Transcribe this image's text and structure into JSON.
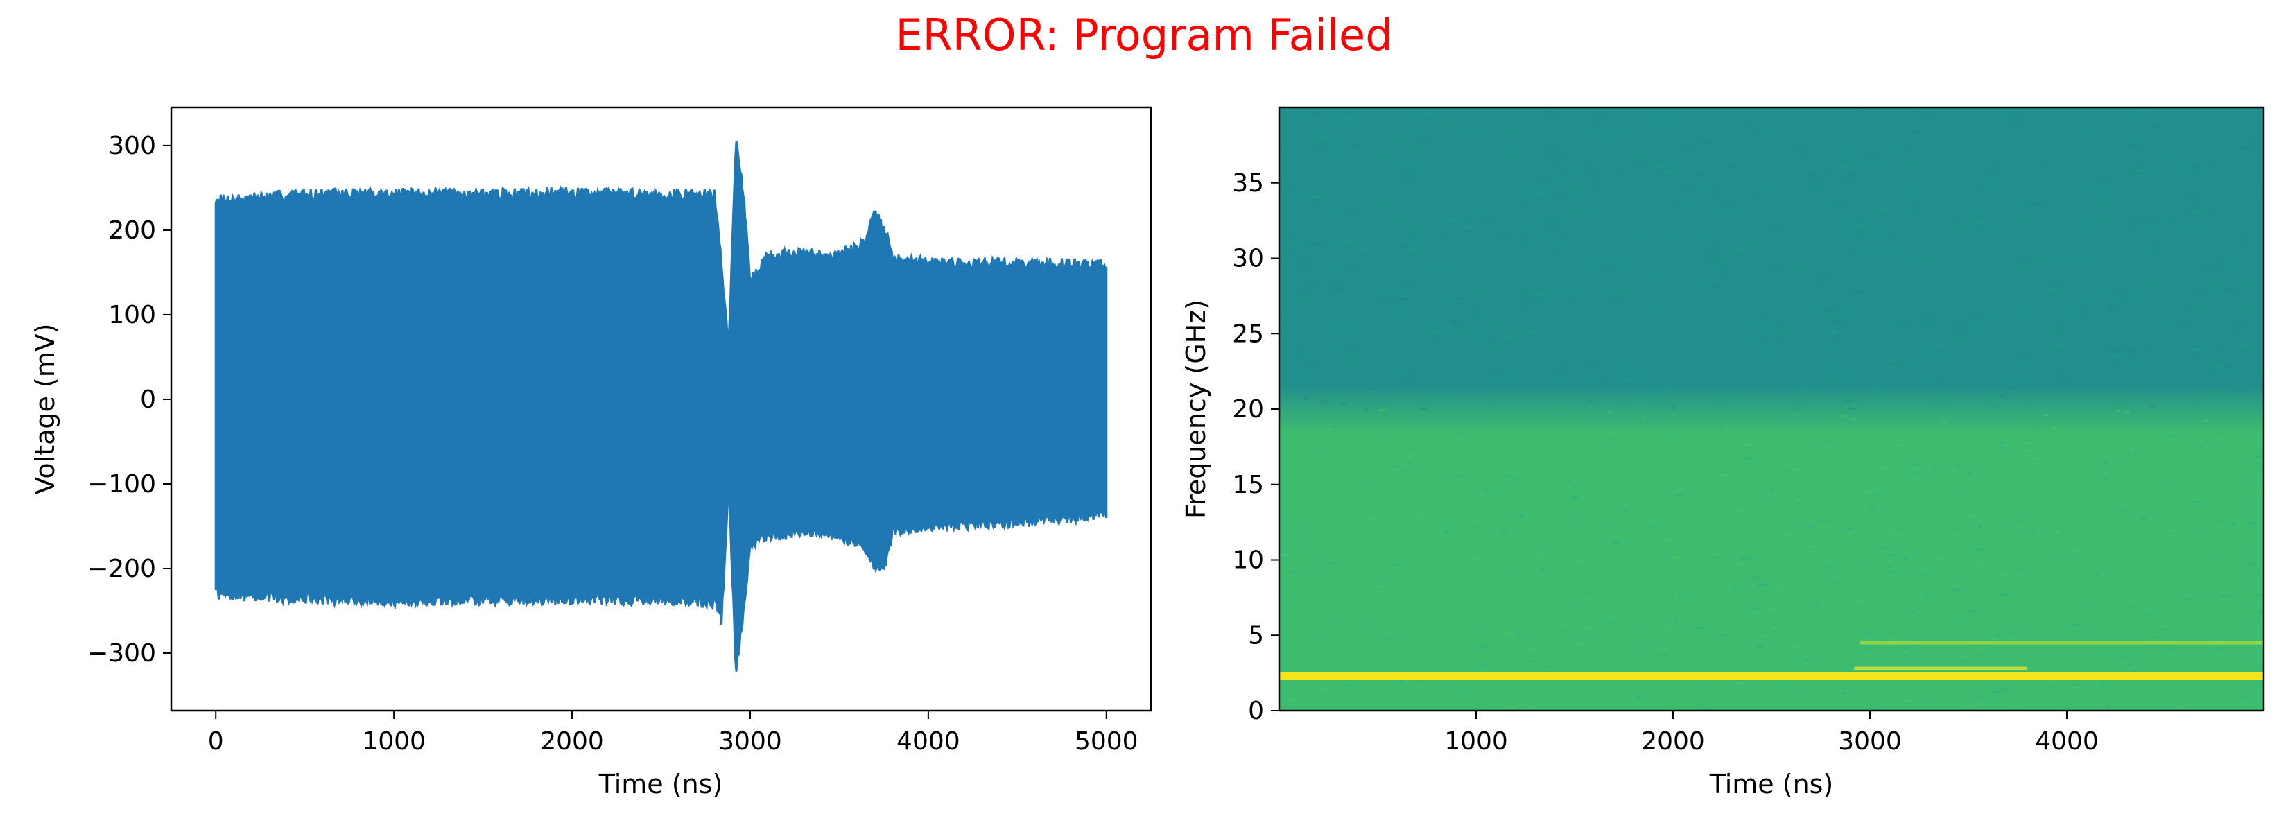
{
  "figure": {
    "title": "ERROR: Program Failed",
    "title_color": "#ff0000"
  },
  "chart_data": [
    {
      "type": "line",
      "xlabel": "Time (ns)",
      "ylabel": "Voltage (mV)",
      "xlim": [
        -250,
        5250
      ],
      "ylim": [
        -368,
        345
      ],
      "xticks": [
        0,
        1000,
        2000,
        3000,
        4000,
        5000
      ],
      "xtick_labels": [
        "0",
        "1000",
        "2000",
        "3000",
        "4000",
        "5000"
      ],
      "yticks": [
        -300,
        -200,
        -100,
        0,
        100,
        200,
        300
      ],
      "ytick_labels": [
        "−300",
        "−200",
        "−100",
        "0",
        "100",
        "200",
        "300"
      ],
      "series": [
        {
          "color": "#1f77b4",
          "envelope_upper": [
            [
              0,
              235
            ],
            [
              500,
              242
            ],
            [
              1000,
              243
            ],
            [
              1500,
              242
            ],
            [
              2000,
              244
            ],
            [
              2500,
              242
            ],
            [
              2800,
              242
            ],
            [
              2840,
              160
            ],
            [
              2880,
              60
            ],
            [
              2920,
              310
            ],
            [
              2960,
              250
            ],
            [
              3000,
              140
            ],
            [
              3100,
              170
            ],
            [
              3300,
              172
            ],
            [
              3500,
              170
            ],
            [
              3640,
              185
            ],
            [
              3700,
              218
            ],
            [
              3760,
              200
            ],
            [
              3800,
              165
            ],
            [
              4000,
              162
            ],
            [
              4500,
              160
            ],
            [
              5000,
              160
            ]
          ],
          "envelope_lower": [
            [
              0,
              -230
            ],
            [
              500,
              -235
            ],
            [
              1000,
              -238
            ],
            [
              1500,
              -236
            ],
            [
              2000,
              -236
            ],
            [
              2500,
              -236
            ],
            [
              2800,
              -240
            ],
            [
              2840,
              -260
            ],
            [
              2880,
              -100
            ],
            [
              2920,
              -320
            ],
            [
              2960,
              -260
            ],
            [
              3000,
              -170
            ],
            [
              3100,
              -160
            ],
            [
              3300,
              -158
            ],
            [
              3500,
              -160
            ],
            [
              3640,
              -175
            ],
            [
              3700,
              -200
            ],
            [
              3760,
              -195
            ],
            [
              3800,
              -155
            ],
            [
              4000,
              -150
            ],
            [
              4500,
              -145
            ],
            [
              5000,
              -135
            ]
          ]
        }
      ]
    },
    {
      "type": "heatmap",
      "xlabel": "Time (ns)",
      "ylabel": "Frequency (GHz)",
      "xlim": [
        0,
        5000
      ],
      "ylim": [
        0,
        40
      ],
      "xticks": [
        1000,
        2000,
        3000,
        4000
      ],
      "xtick_labels": [
        "1000",
        "2000",
        "3000",
        "4000"
      ],
      "yticks": [
        0,
        5,
        10,
        15,
        20,
        25,
        30,
        35
      ],
      "ytick_labels": [
        "0",
        "5",
        "10",
        "15",
        "20",
        "25",
        "30",
        "35"
      ],
      "colormap": "viridis",
      "bands": [
        {
          "freq_range": [
            0,
            20
          ],
          "color": "#3dbb6f"
        },
        {
          "freq_range": [
            20,
            40
          ],
          "color": "#21908c"
        }
      ],
      "lines": [
        {
          "freq": 2.3,
          "t_range": [
            0,
            5000
          ],
          "color": "#f2e51e"
        },
        {
          "freq": 2.8,
          "t_range": [
            2920,
            3800
          ],
          "color": "#c8de34"
        },
        {
          "freq": 4.5,
          "t_range": [
            2950,
            5000
          ],
          "color": "#8fd44a"
        }
      ]
    }
  ]
}
